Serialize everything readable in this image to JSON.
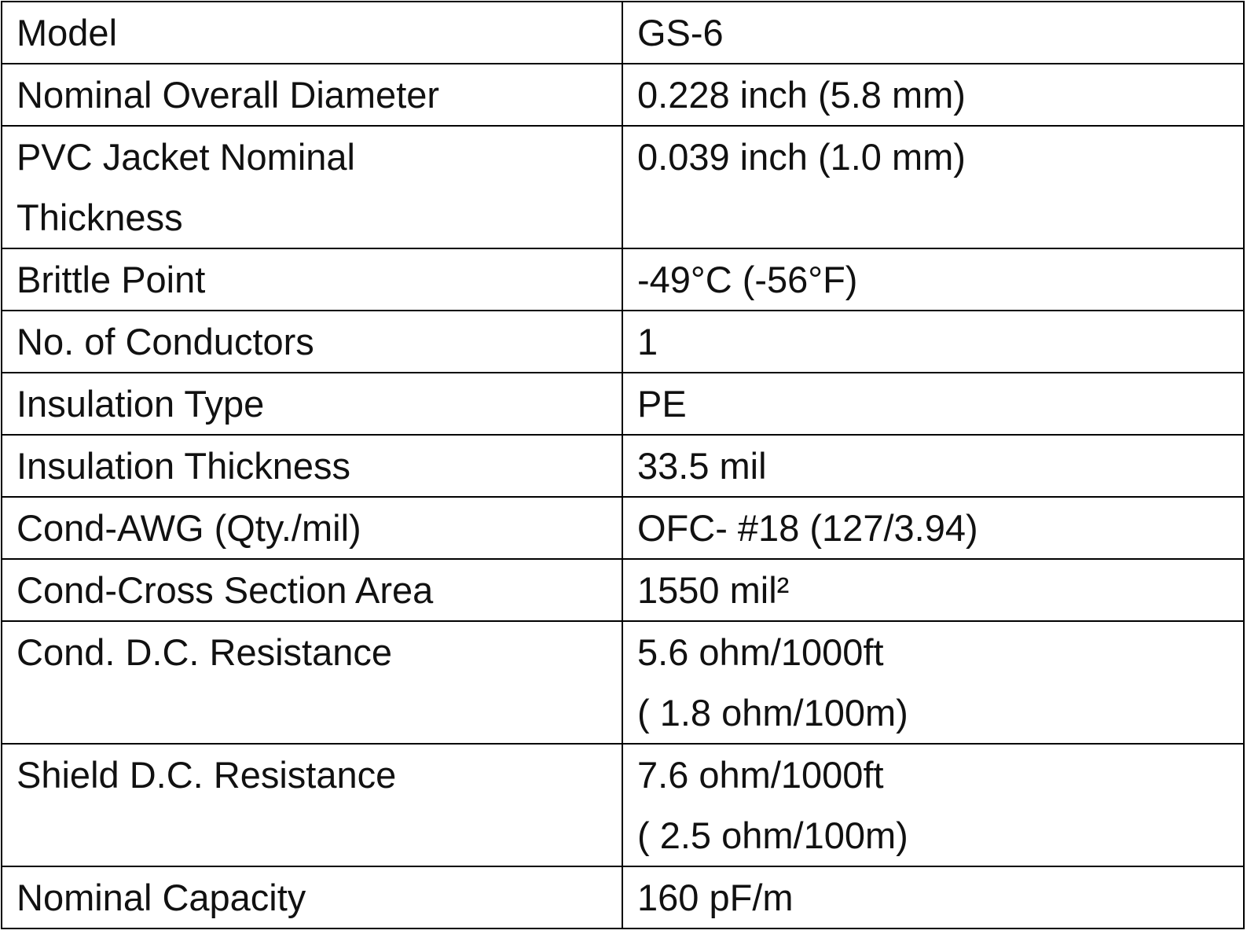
{
  "table": {
    "rows": [
      [
        [
          "Model"
        ],
        [
          "GS-6"
        ]
      ],
      [
        [
          "Nominal Overall Diameter"
        ],
        [
          "0.228 inch (5.8 mm)"
        ]
      ],
      [
        [
          "PVC Jacket Nominal",
          "Thickness"
        ],
        [
          "0.039 inch (1.0 mm)"
        ]
      ],
      [
        [
          "Brittle Point"
        ],
        [
          "-49°C (-56°F)"
        ]
      ],
      [
        [
          "No. of Conductors"
        ],
        [
          "1"
        ]
      ],
      [
        [
          "Insulation Type"
        ],
        [
          "PE"
        ]
      ],
      [
        [
          "Insulation Thickness"
        ],
        [
          "33.5 mil"
        ]
      ],
      [
        [
          "Cond-AWG (Qty./mil)"
        ],
        [
          "OFC- #18 (127/3.94)"
        ]
      ],
      [
        [
          "Cond-Cross Section Area"
        ],
        [
          "1550 mil²"
        ]
      ],
      [
        [
          "Cond. D.C. Resistance"
        ],
        [
          "5.6 ohm/1000ft",
          "( 1.8 ohm/100m)"
        ]
      ],
      [
        [
          "Shield D.C. Resistance"
        ],
        [
          "7.6 ohm/1000ft",
          "( 2.5 ohm/100m)"
        ]
      ],
      [
        [
          "Nominal Capacity"
        ],
        [
          "160 pF/m"
        ]
      ]
    ]
  }
}
